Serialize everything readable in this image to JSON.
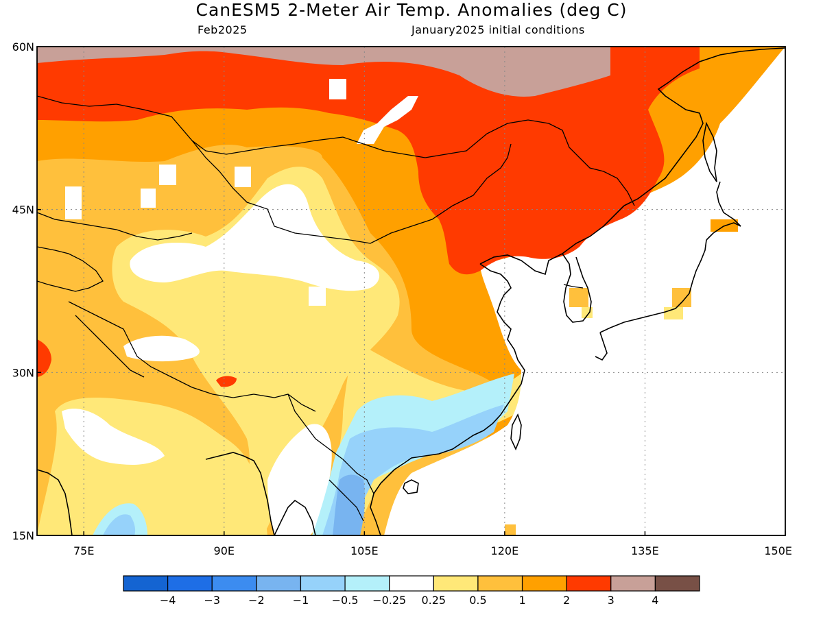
{
  "header": {
    "title": "CanESM5 2-Meter Air Temp. Anomalies (deg C)",
    "valid_month": "Feb2025",
    "init_conditions": "January2025 initial conditions"
  },
  "map": {
    "lon_range": [
      70,
      150
    ],
    "lat_range": [
      15,
      60
    ],
    "lat_ticks": [
      {
        "value": 60,
        "label": "60N"
      },
      {
        "value": 45,
        "label": "45N"
      },
      {
        "value": 30,
        "label": "30N"
      },
      {
        "value": 15,
        "label": "15N"
      }
    ],
    "lon_ticks": [
      {
        "value": 75,
        "label": "75E"
      },
      {
        "value": 90,
        "label": "90E"
      },
      {
        "value": 105,
        "label": "105E"
      },
      {
        "value": 120,
        "label": "120E"
      },
      {
        "value": 135,
        "label": "135E"
      },
      {
        "value": 150,
        "label": "150E"
      }
    ],
    "gridlines": "dotted"
  },
  "colorbar": {
    "colors": [
      "#1464d2",
      "#1e6ee6",
      "#3c8cf0",
      "#78b4f0",
      "#96d2fa",
      "#b4f0fa",
      "#ffffff",
      "#ffe878",
      "#ffc03c",
      "#ffa000",
      "#ff3a00",
      "#c8a098",
      "#785046"
    ],
    "labels": [
      "-4",
      "-3",
      "-2",
      "-1",
      "-0.5",
      "-0.25",
      "0.25",
      "0.5",
      "1",
      "2",
      "3",
      "4"
    ]
  }
}
